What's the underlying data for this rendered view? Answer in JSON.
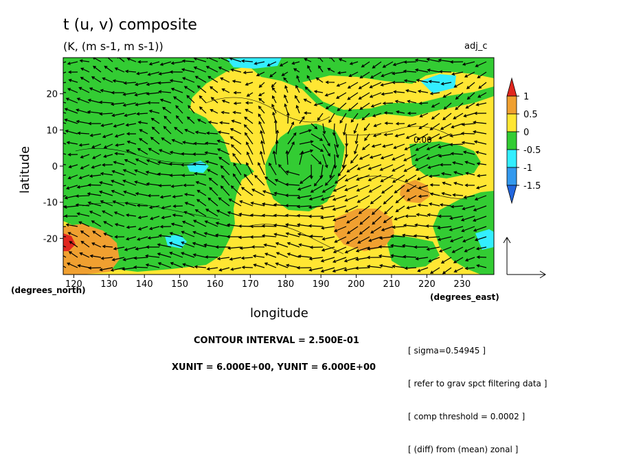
{
  "chart_data": {
    "type": "heatmap",
    "title": "t (u, v) composite",
    "subtitle": "(K, (m s-1, m s-1))",
    "run_label": "adj_c",
    "xlabel": "longitude",
    "ylabel": "latitude",
    "x_unit_label": "(degrees_east)",
    "y_unit_label": "(degrees_north)",
    "xlim": [
      117,
      239
    ],
    "ylim": [
      -30,
      30
    ],
    "x_ticks": [
      120,
      130,
      140,
      150,
      160,
      170,
      180,
      190,
      200,
      210,
      220,
      230
    ],
    "y_ticks": [
      20,
      10,
      0,
      -10,
      -20
    ],
    "colorbar": {
      "labels": [
        "1",
        "0.5",
        "0",
        "-0.5",
        "-1",
        "-1.5"
      ],
      "colors": [
        "#e0261e",
        "#f0a030",
        "#ffe633",
        "#33cc33",
        "#33eeff",
        "#3399ee",
        "#2266dd"
      ]
    },
    "contour_label": "0.00",
    "contour_interval": "CONTOUR INTERVAL = 2.500E-01",
    "vector_units": "XUNIT = 6.000E+00, YUNIT = 6.000E+00",
    "notes": [
      "[ sigma=0.54945 ]",
      "[ refer to grav spct filtering data ]",
      "[ comp threshold = 0.0002 ]",
      "[ (diff) from (mean) zonal ]"
    ],
    "regions": [
      {
        "name": "green-west",
        "value": -0.5
      },
      {
        "name": "yellow-central",
        "value": 0.25
      },
      {
        "name": "green-cyclone",
        "value": -0.5
      },
      {
        "name": "orange-southwest",
        "value": 0.75
      },
      {
        "name": "orange-south-central",
        "value": 0.75
      },
      {
        "name": "orange-east",
        "value": 0.75
      },
      {
        "name": "red-southwest",
        "value": 1.0
      },
      {
        "name": "cyan-patches",
        "value": -0.75
      }
    ]
  }
}
